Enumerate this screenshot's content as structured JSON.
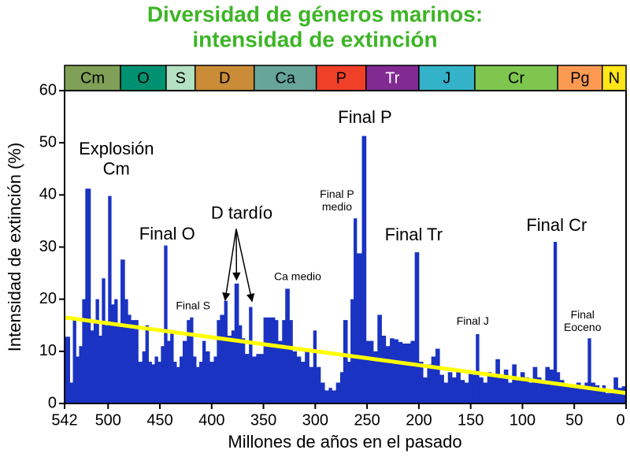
{
  "chart_data": {
    "type": "area",
    "title": [
      "Diversidad de géneros marinos:",
      "intensidad de extinción"
    ],
    "title_color": "#3db526",
    "xlabel": "Millones de años en el pasado",
    "ylabel": "Intensidad de extinción (%)",
    "xlim": [
      542,
      0
    ],
    "ylim": [
      0,
      60
    ],
    "xticks": [
      542,
      500,
      450,
      400,
      350,
      300,
      250,
      200,
      150,
      100,
      50,
      0
    ],
    "yticks": [
      0,
      10,
      20,
      30,
      40,
      50,
      60
    ],
    "periods": [
      {
        "label": "Cm",
        "start": 542,
        "end": 488,
        "color": "#7fa056"
      },
      {
        "label": "O",
        "start": 488,
        "end": 444,
        "color": "#009270"
      },
      {
        "label": "S",
        "start": 444,
        "end": 416,
        "color": "#b3e1c2"
      },
      {
        "label": "D",
        "start": 416,
        "end": 359,
        "color": "#cb8c37"
      },
      {
        "label": "Ca",
        "start": 359,
        "end": 299,
        "color": "#67a599"
      },
      {
        "label": "P",
        "start": 299,
        "end": 251,
        "color": "#f04028"
      },
      {
        "label": "Tr",
        "start": 251,
        "end": 200,
        "color": "#812b92"
      },
      {
        "label": "J",
        "start": 200,
        "end": 146,
        "color": "#34b2c9"
      },
      {
        "label": "Cr",
        "start": 146,
        "end": 66,
        "color": "#7fc64e"
      },
      {
        "label": "Pg",
        "start": 66,
        "end": 23,
        "color": "#fd9a52"
      },
      {
        "label": "N",
        "start": 23,
        "end": 0,
        "color": "#ffe619"
      }
    ],
    "series": [
      {
        "color": "#1a33c2",
        "x": [
          542,
          537,
          534,
          531,
          528,
          525,
          522,
          517,
          514,
          512,
          509,
          506,
          503,
          500,
          497,
          494,
          491,
          488,
          484,
          481,
          478,
          474,
          471,
          467,
          464,
          461,
          458,
          455,
          452,
          449,
          446,
          443,
          440,
          437,
          434,
          431,
          428,
          424,
          421,
          418,
          415,
          412,
          409,
          406,
          402,
          398,
          395,
          392,
          388,
          385,
          381,
          378,
          374,
          371,
          368,
          364,
          361,
          357,
          353,
          350,
          346,
          343,
          339,
          336,
          332,
          329,
          325,
          322,
          318,
          314,
          310,
          306,
          302,
          299,
          295,
          291,
          287,
          284,
          280,
          276,
          273,
          269,
          266,
          263,
          260,
          255,
          251,
          248,
          244,
          240,
          236,
          232,
          228,
          224,
          220,
          216,
          212,
          208,
          204,
          200,
          196,
          192,
          188,
          184,
          180,
          176,
          172,
          168,
          164,
          160,
          156,
          152,
          148,
          145,
          142,
          138,
          134,
          130,
          126,
          122,
          118,
          114,
          110,
          106,
          102,
          98,
          94,
          90,
          86,
          82,
          78,
          74,
          70,
          67,
          64,
          60,
          56,
          52,
          48,
          44,
          40,
          37,
          34,
          30,
          26,
          23,
          20,
          16,
          12,
          8,
          4
        ],
        "values": [
          12.8,
          4,
          16,
          9,
          11,
          20,
          41.2,
          14,
          16,
          20,
          13,
          24,
          15,
          39.8,
          19,
          20,
          15,
          27.6,
          20,
          17,
          16,
          16,
          8,
          10,
          15,
          8,
          7.5,
          9,
          8,
          11,
          30.3,
          12,
          14,
          8,
          7,
          9,
          12,
          16,
          16.5,
          9,
          7,
          8,
          12,
          10,
          8,
          9,
          16,
          17,
          19.7,
          13,
          14,
          23,
          15,
          12.5,
          9.5,
          18.5,
          9,
          9.5,
          9.5,
          16.5,
          16.5,
          16.5,
          16,
          12,
          16,
          22,
          16,
          10,
          9,
          8,
          10,
          7,
          14,
          7,
          4,
          2.5,
          3,
          2.5,
          4,
          6,
          16,
          8,
          20,
          35.5,
          28.8,
          51.3,
          12,
          12,
          10,
          17,
          13,
          11,
          12.5,
          12.3,
          11.8,
          11.5,
          11.5,
          12,
          29,
          8,
          5,
          7.5,
          9,
          10.5,
          5.5,
          4,
          6,
          5,
          6,
          4.5,
          4,
          6,
          5.5,
          13.3,
          5,
          4,
          6,
          5.5,
          8.5,
          5,
          6.5,
          4,
          7.5,
          5,
          6,
          5,
          4,
          7,
          5,
          4.5,
          7,
          6.5,
          31,
          6,
          4.5,
          3.5,
          3.5,
          3.5,
          4,
          3.5,
          4,
          12.5,
          4,
          3.5,
          2.5,
          3.5,
          2,
          2,
          5,
          3,
          3.3
        ]
      }
    ],
    "trend": {
      "x": [
        542,
        0
      ],
      "values": [
        16.5,
        2
      ],
      "color": "#ffff00"
    },
    "annotations": [
      {
        "lines": [
          "Explosión",
          "Cm"
        ],
        "x": 492,
        "y": 46.7,
        "style": "large"
      },
      {
        "lines": [
          "Final O"
        ],
        "x": 443,
        "y": 32.3,
        "style": "large"
      },
      {
        "lines": [
          "Final S"
        ],
        "x": 418,
        "y": 18.6,
        "style": "small"
      },
      {
        "lines": [
          "D tardío"
        ],
        "x": 371,
        "y": 36.3,
        "style": "large",
        "targets": [
          [
            387,
            19.8
          ],
          [
            376,
            23.7
          ],
          [
            361,
            19.6
          ]
        ]
      },
      {
        "lines": [
          "Ca medio"
        ],
        "x": 317,
        "y": 24.2,
        "style": "small"
      },
      {
        "lines": [
          "Final P"
        ],
        "x": 252,
        "y": 54.7,
        "style": "large"
      },
      {
        "lines": [
          "Final P",
          "medio"
        ],
        "x": 279,
        "y": 38.8,
        "style": "small"
      },
      {
        "lines": [
          "Final Tr"
        ],
        "x": 205,
        "y": 32.2,
        "style": "large"
      },
      {
        "lines": [
          "Final J"
        ],
        "x": 148,
        "y": 15.7,
        "style": "small"
      },
      {
        "lines": [
          "Final Cr"
        ],
        "x": 67,
        "y": 34,
        "style": "large"
      },
      {
        "lines": [
          "Final",
          "Eoceno"
        ],
        "x": 42,
        "y": 15.7,
        "style": "small"
      }
    ]
  }
}
